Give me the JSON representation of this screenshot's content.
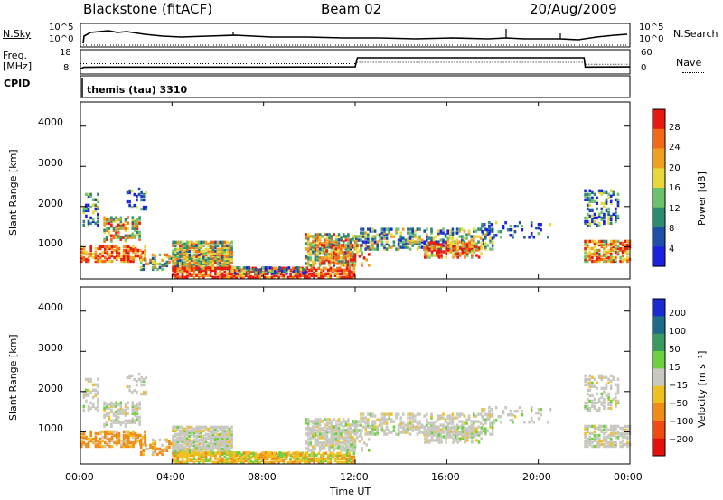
{
  "header": {
    "title": "Blackstone (fitACF)",
    "beam": "Beam 02",
    "date": "20/Aug/2009"
  },
  "chart_data": [
    {
      "type": "line",
      "panel": "sky-search",
      "left_label": "N.Sky",
      "right_label": "N.Search",
      "yticks_left": [
        "10^5",
        "10^0"
      ],
      "yticks_right": [
        "10^5",
        "10^0"
      ]
    },
    {
      "type": "line",
      "panel": "freq-nave",
      "left_label": "Freq.",
      "left_unit": "[MHz]",
      "right_label": "Nave",
      "yticks_left": [
        "18",
        "8"
      ],
      "yticks_right": [
        "60",
        "0"
      ],
      "freq_series": {
        "x_hours": [
          0,
          0.15,
          1,
          4,
          8,
          12,
          12.1,
          22,
          22.05,
          24
        ],
        "y": [
          8.6,
          9.3,
          9.4,
          9.4,
          9.4,
          9.5,
          14,
          14,
          9.4,
          9.5
        ]
      },
      "nave_series": {
        "x_hours": [
          0,
          12,
          12.1,
          22,
          22.05,
          24
        ],
        "y": [
          26,
          26,
          30,
          30,
          24,
          24
        ]
      }
    },
    {
      "type": "table",
      "panel": "cpid",
      "label": "CPID",
      "text": "themis (tau) 3310"
    },
    {
      "type": "heatmap",
      "panel": "power",
      "ylabel": "Slant Range [km]",
      "yticks": [
        "1000",
        "2000",
        "3000",
        "4000"
      ],
      "ylim": [
        200,
        4600
      ],
      "xlim_hours": [
        0,
        24
      ],
      "colorbar_label": "Power [dB]",
      "colorbar_ticks": [
        "4",
        "8",
        "12",
        "16",
        "20",
        "24",
        "28"
      ],
      "colorbar_colors": [
        "#1a22e0",
        "#1e50a8",
        "#2f8a70",
        "#6cc26a",
        "#e8d83a",
        "#f0a020",
        "#f06a18",
        "#e61a10"
      ]
    },
    {
      "type": "heatmap",
      "panel": "velocity",
      "ylabel": "Slant Range [km]",
      "yticks": [
        "1000",
        "2000",
        "3000",
        "4000"
      ],
      "ylim": [
        200,
        4600
      ],
      "xlim_hours": [
        0,
        24
      ],
      "colorbar_label": "Velocity [m s⁻¹]",
      "colorbar_ticks": [
        "200",
        "100",
        "50",
        "15",
        "−15",
        "−50",
        "−100",
        "−200"
      ],
      "colorbar_colors": [
        "#1a2ad0",
        "#1e6a8a",
        "#3a9a60",
        "#6cd040",
        "#c8c8c0",
        "#f0c020",
        "#f08a18",
        "#f04a10",
        "#e6100a"
      ],
      "xlabel": "Time UT",
      "xticks": [
        "00:00",
        "04:00",
        "08:00",
        "12:00",
        "16:00",
        "20:00",
        "00:00"
      ]
    }
  ]
}
